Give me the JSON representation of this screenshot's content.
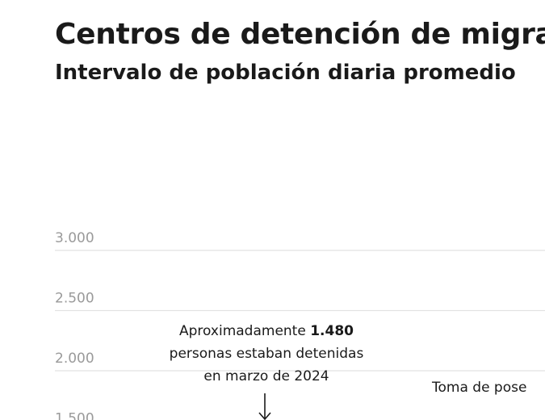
{
  "chart_data": {
    "type": "line",
    "title": "Centros de detención de migrar",
    "subtitle": "Intervalo de población diaria promedio",
    "y_ticks": [
      "3.000",
      "2.500",
      "2.000",
      "1.500"
    ],
    "ylim": [
      1500,
      3000
    ],
    "grid": true,
    "annotations": [
      {
        "prefix": "Aproximadamente ",
        "value": "1.480",
        "line2": "personas estaban detenidas",
        "line3": "en marzo de 2024"
      },
      {
        "text": "Toma de pose"
      }
    ]
  }
}
